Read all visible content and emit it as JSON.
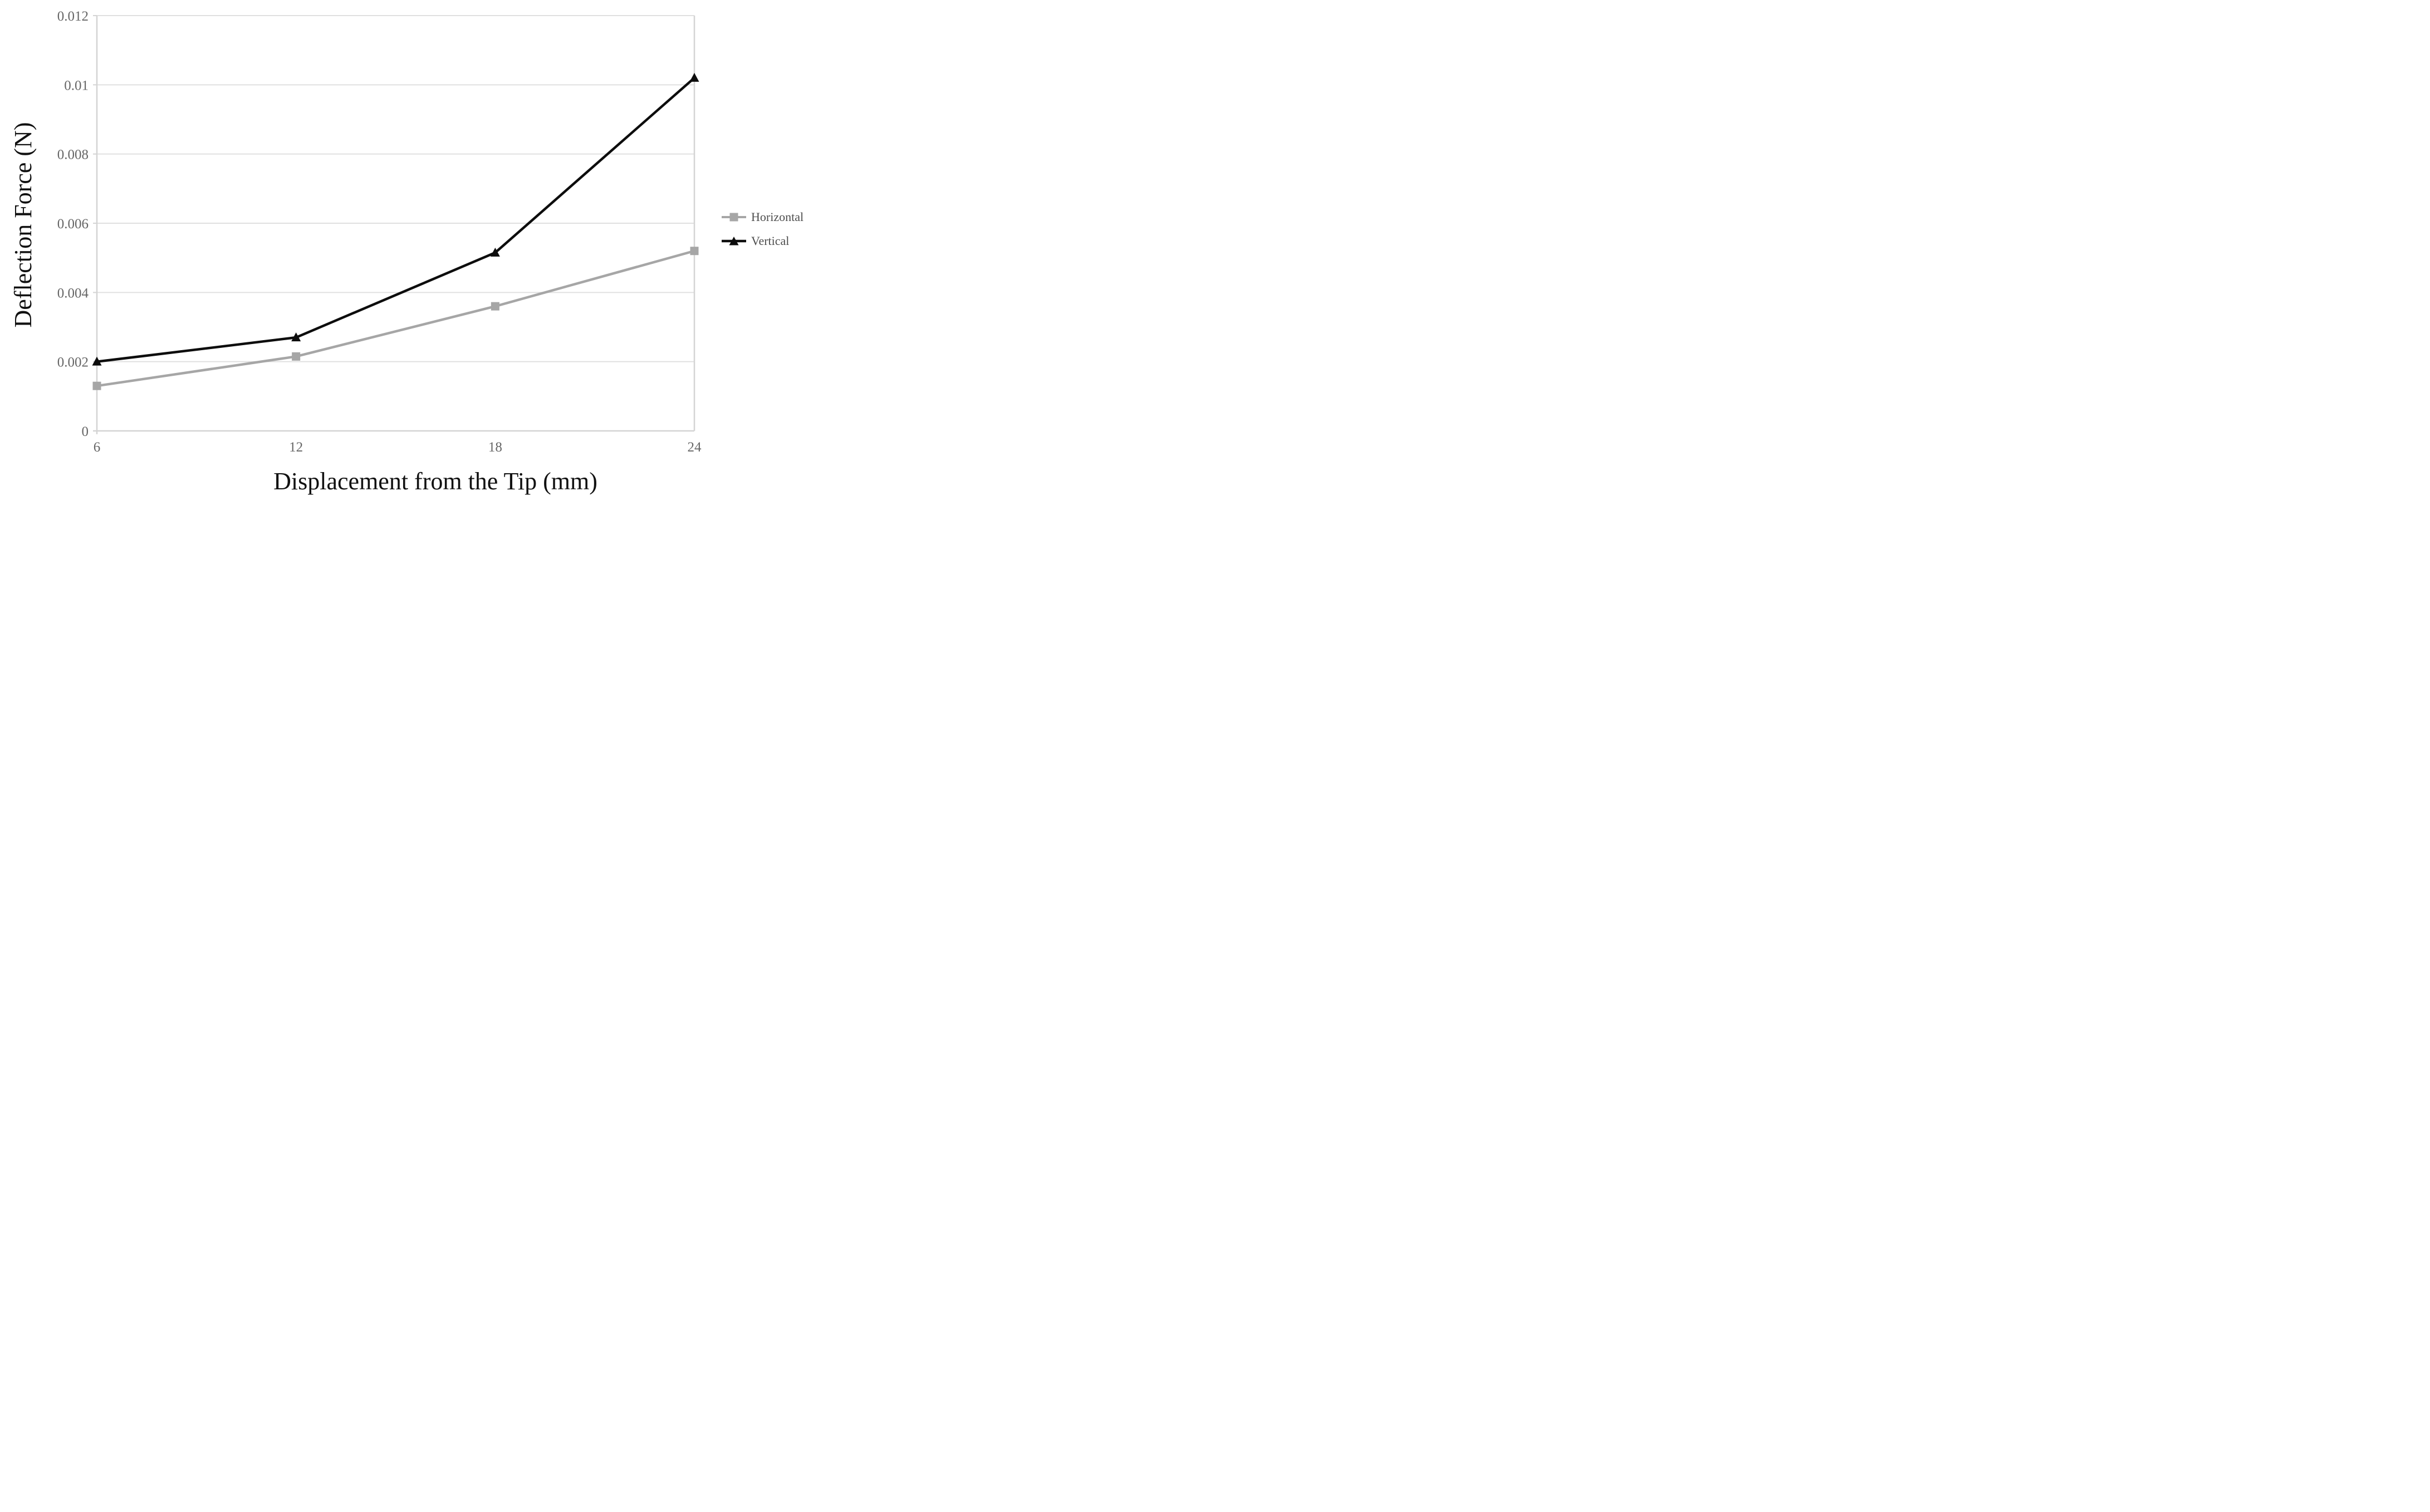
{
  "chart_data": {
    "type": "line",
    "title": "",
    "xlabel": "Displacement from the Tip (mm)",
    "ylabel": "Deflection Force (N)",
    "x": [
      6,
      12,
      18,
      24
    ],
    "x_tick_labels": [
      "6",
      "12",
      "18",
      "24"
    ],
    "xlim": [
      6,
      24
    ],
    "y_ticks": [
      0,
      0.002,
      0.004,
      0.006,
      0.008,
      0.01,
      0.012
    ],
    "y_tick_labels": [
      "0",
      "0.002",
      "0.004",
      "0.006",
      "0.008",
      "0.01",
      "0.012"
    ],
    "ylim": [
      0,
      0.012
    ],
    "grid": "horizontal-major",
    "legend_position": "right",
    "series": [
      {
        "name": "Horizontal",
        "marker": "square",
        "color": "#a6a6a6",
        "values": [
          0.0013,
          0.00215,
          0.0036,
          0.0052
        ]
      },
      {
        "name": "Vertical",
        "marker": "triangle",
        "color": "#0d0d0d",
        "values": [
          0.002,
          0.0027,
          0.00515,
          0.0102
        ]
      }
    ],
    "colors": {
      "background": "#ffffff",
      "gridline": "#e0e0e0",
      "axis_line": "#d4d4d4",
      "tick_label": "#666666",
      "axis_title": "#111111",
      "legend_text": "#4d4d4d"
    }
  }
}
